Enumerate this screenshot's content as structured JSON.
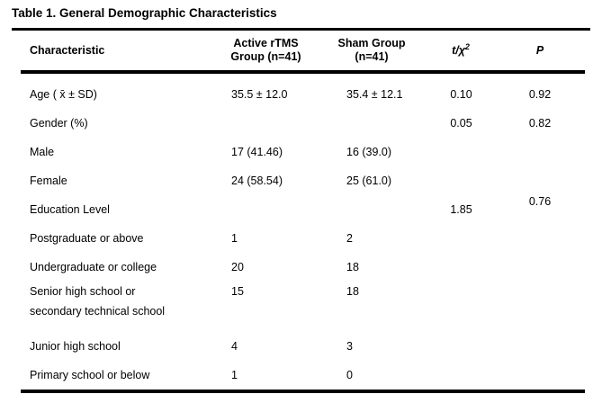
{
  "title": "Table 1. General Demographic Characteristics",
  "colors": {
    "text": "#000000",
    "background": "#ffffff",
    "rule": "#000000"
  },
  "table": {
    "header": {
      "characteristic": "Characteristic",
      "active_group_line1": "Active rTMS",
      "active_group_line2": "Group (n=41)",
      "sham_group_line1": "Sham Group",
      "sham_group_line2": "(n=41)",
      "statistic_base": "t/χ",
      "statistic_sup": "2",
      "p": "P"
    },
    "rows": [
      {
        "characteristic": "Age ( x̄ ± SD)",
        "active": "35.5 ± 12.0",
        "sham": "35.4 ± 12.1",
        "statistic": "0.10",
        "p": "0.92"
      },
      {
        "characteristic": "Gender (%)",
        "active": "",
        "sham": "",
        "statistic": "0.05",
        "p": "0.82"
      },
      {
        "characteristic": "Male",
        "active": "17 (41.46)",
        "sham": "16 (39.0)",
        "statistic": "",
        "p": ""
      },
      {
        "characteristic": "Female",
        "active": "24 (58.54)",
        "sham": "25 (61.0)",
        "statistic": "",
        "p": ""
      },
      {
        "characteristic": "Education Level",
        "active": "",
        "sham": "",
        "statistic": "1.85",
        "p": "0.76"
      },
      {
        "characteristic": "Postgraduate or above",
        "active": "1",
        "sham": "2",
        "statistic": "",
        "p": ""
      },
      {
        "characteristic": "Undergraduate or college",
        "active": "20",
        "sham": "18",
        "statistic": "",
        "p": ""
      },
      {
        "characteristic": "Senior high school or",
        "characteristic_line2": "secondary technical school",
        "active": "15",
        "sham": "18",
        "statistic": "",
        "p": ""
      },
      {
        "characteristic": "Junior high school",
        "active": "4",
        "sham": "3",
        "statistic": "",
        "p": ""
      },
      {
        "characteristic": "Primary school or below",
        "active": "1",
        "sham": "0",
        "statistic": "",
        "p": ""
      }
    ]
  }
}
